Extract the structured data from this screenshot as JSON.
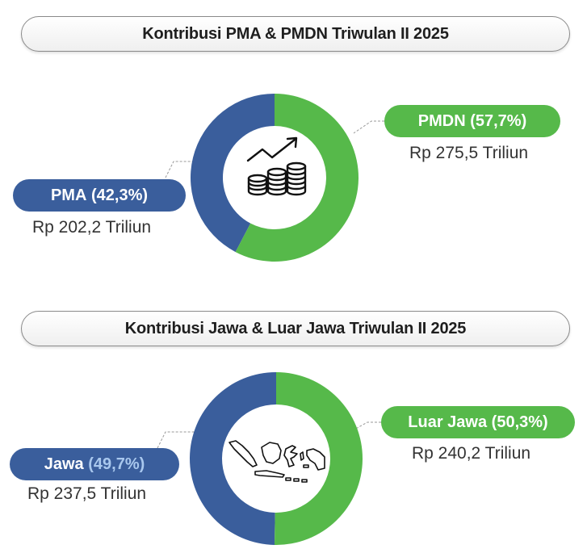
{
  "colors": {
    "blue": "#3a5e9c",
    "green": "#56b94a",
    "leader": "#9a9a9a"
  },
  "chart_data": [
    {
      "type": "pie",
      "title": "Kontribusi PMA & PMDN Triwulan II 2025",
      "center_icon": "rising-coins-icon",
      "slices": [
        {
          "label": "PMA",
          "pct_text": "(42,3%)",
          "value": 42.3,
          "amount": "Rp 202,2 Triliun",
          "color": "#3a5e9c"
        },
        {
          "label": "PMDN",
          "pct_text": "(57,7%)",
          "value": 57.7,
          "amount": "Rp 275,5 Triliun",
          "color": "#56b94a"
        }
      ]
    },
    {
      "type": "pie",
      "title": "Kontribusi Jawa & Luar Jawa Triwulan II 2025",
      "center_icon": "indonesia-map-icon",
      "slices": [
        {
          "label": "Jawa",
          "pct_text": "(49,7%)",
          "value": 49.7,
          "amount": "Rp 237,5 Triliun",
          "color": "#3a5e9c"
        },
        {
          "label": "Luar Jawa",
          "pct_text": "(50,3%)",
          "value": 50.3,
          "amount": "Rp 240,2 Triliun",
          "color": "#56b94a"
        }
      ]
    }
  ]
}
